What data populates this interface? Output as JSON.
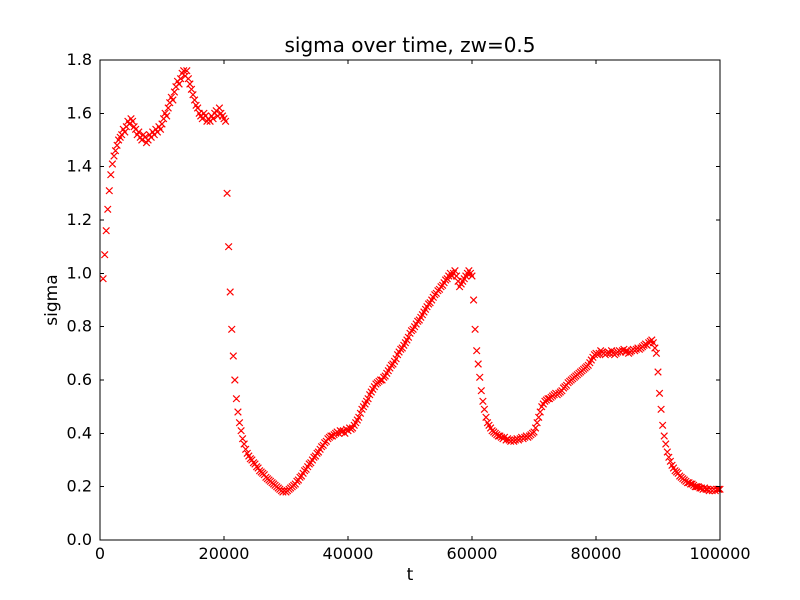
{
  "figure": {
    "background_color": "#ffffff",
    "spine_color": "#000000"
  },
  "chart_data": {
    "type": "scatter",
    "title": "sigma over time, zw=0.5",
    "xlabel": "t",
    "ylabel": "sigma",
    "xlim": [
      0,
      100000
    ],
    "ylim": [
      0.0,
      1.8
    ],
    "xticks": [
      0,
      20000,
      40000,
      60000,
      80000,
      100000
    ],
    "xtick_labels": [
      "0",
      "20000",
      "40000",
      "60000",
      "80000",
      "100000"
    ],
    "yticks": [
      0.0,
      0.2,
      0.4,
      0.6,
      0.8,
      1.0,
      1.2,
      1.4,
      1.6,
      1.8
    ],
    "ytick_labels": [
      "0.0",
      "0.2",
      "0.4",
      "0.6",
      "0.8",
      "1.0",
      "1.2",
      "1.4",
      "1.6",
      "1.8"
    ],
    "grid": false,
    "legend": null,
    "marker": "x",
    "marker_color": "#ff0000",
    "tick_direction": "in",
    "series": [
      {
        "name": "sigma",
        "t0": 500,
        "dt": 250,
        "values": [
          0.98,
          1.07,
          1.16,
          1.24,
          1.31,
          1.37,
          1.41,
          1.44,
          1.46,
          1.48,
          1.5,
          1.51,
          1.52,
          1.54,
          1.53,
          1.55,
          1.57,
          1.56,
          1.58,
          1.57,
          1.55,
          1.54,
          1.52,
          1.53,
          1.51,
          1.5,
          1.52,
          1.51,
          1.49,
          1.5,
          1.52,
          1.51,
          1.53,
          1.52,
          1.54,
          1.53,
          1.55,
          1.54,
          1.56,
          1.58,
          1.6,
          1.59,
          1.62,
          1.64,
          1.66,
          1.65,
          1.68,
          1.7,
          1.72,
          1.71,
          1.73,
          1.75,
          1.76,
          1.74,
          1.76,
          1.73,
          1.71,
          1.69,
          1.67,
          1.65,
          1.63,
          1.62,
          1.6,
          1.59,
          1.58,
          1.6,
          1.59,
          1.57,
          1.58,
          1.57,
          1.59,
          1.58,
          1.6,
          1.61,
          1.59,
          1.62,
          1.6,
          1.59,
          1.58,
          1.57,
          1.3,
          1.1,
          0.93,
          0.79,
          0.69,
          0.6,
          0.53,
          0.48,
          0.44,
          0.41,
          0.38,
          0.36,
          0.34,
          0.325,
          0.315,
          0.305,
          0.3,
          0.29,
          0.285,
          0.275,
          0.27,
          0.26,
          0.255,
          0.25,
          0.245,
          0.235,
          0.23,
          0.225,
          0.22,
          0.215,
          0.21,
          0.205,
          0.2,
          0.195,
          0.19,
          0.185,
          0.18,
          0.185,
          0.18,
          0.185,
          0.19,
          0.195,
          0.2,
          0.205,
          0.21,
          0.22,
          0.225,
          0.235,
          0.24,
          0.25,
          0.26,
          0.265,
          0.275,
          0.285,
          0.29,
          0.3,
          0.31,
          0.315,
          0.325,
          0.33,
          0.34,
          0.35,
          0.355,
          0.365,
          0.37,
          0.38,
          0.385,
          0.39,
          0.39,
          0.395,
          0.4,
          0.405,
          0.4,
          0.41,
          0.405,
          0.41,
          0.4,
          0.415,
          0.41,
          0.42,
          0.415,
          0.42,
          0.43,
          0.44,
          0.45,
          0.46,
          0.475,
          0.49,
          0.5,
          0.51,
          0.52,
          0.53,
          0.545,
          0.555,
          0.565,
          0.575,
          0.585,
          0.59,
          0.595,
          0.6,
          0.6,
          0.61,
          0.615,
          0.625,
          0.635,
          0.645,
          0.655,
          0.66,
          0.67,
          0.68,
          0.695,
          0.705,
          0.715,
          0.72,
          0.73,
          0.74,
          0.75,
          0.76,
          0.775,
          0.785,
          0.79,
          0.8,
          0.81,
          0.82,
          0.825,
          0.835,
          0.845,
          0.855,
          0.865,
          0.875,
          0.885,
          0.89,
          0.9,
          0.91,
          0.92,
          0.925,
          0.935,
          0.94,
          0.95,
          0.955,
          0.965,
          0.975,
          0.98,
          0.99,
          1.0,
          0.99,
          1.0,
          1.01,
          0.99,
          0.97,
          0.95,
          0.96,
          0.97,
          0.98,
          0.99,
          1.0,
          1.01,
          1.0,
          0.99,
          0.9,
          0.79,
          0.71,
          0.66,
          0.61,
          0.56,
          0.52,
          0.49,
          0.46,
          0.44,
          0.43,
          0.42,
          0.41,
          0.405,
          0.4,
          0.395,
          0.39,
          0.39,
          0.385,
          0.38,
          0.385,
          0.375,
          0.38,
          0.375,
          0.37,
          0.375,
          0.37,
          0.375,
          0.38,
          0.375,
          0.38,
          0.385,
          0.38,
          0.385,
          0.39,
          0.385,
          0.39,
          0.395,
          0.4,
          0.405,
          0.42,
          0.44,
          0.46,
          0.48,
          0.5,
          0.51,
          0.52,
          0.525,
          0.53,
          0.53,
          0.535,
          0.54,
          0.545,
          0.55,
          0.545,
          0.55,
          0.555,
          0.56,
          0.57,
          0.575,
          0.58,
          0.59,
          0.595,
          0.6,
          0.605,
          0.61,
          0.615,
          0.62,
          0.625,
          0.63,
          0.635,
          0.64,
          0.645,
          0.65,
          0.655,
          0.665,
          0.675,
          0.685,
          0.695,
          0.7,
          0.695,
          0.7,
          0.71,
          0.705,
          0.7,
          0.695,
          0.7,
          0.705,
          0.7,
          0.71,
          0.7,
          0.695,
          0.7,
          0.705,
          0.71,
          0.705,
          0.71,
          0.715,
          0.705,
          0.71,
          0.7,
          0.705,
          0.71,
          0.715,
          0.71,
          0.715,
          0.72,
          0.715,
          0.72,
          0.725,
          0.73,
          0.735,
          0.73,
          0.74,
          0.745,
          0.75,
          0.74,
          0.72,
          0.7,
          0.63,
          0.55,
          0.49,
          0.43,
          0.39,
          0.36,
          0.33,
          0.31,
          0.295,
          0.28,
          0.27,
          0.26,
          0.255,
          0.25,
          0.24,
          0.235,
          0.23,
          0.225,
          0.22,
          0.215,
          0.215,
          0.21,
          0.21,
          0.205,
          0.2,
          0.2,
          0.2,
          0.195,
          0.195,
          0.19,
          0.195,
          0.19,
          0.19,
          0.185,
          0.19,
          0.185,
          0.19,
          0.185,
          0.19,
          0.19,
          0.19
        ]
      }
    ]
  }
}
